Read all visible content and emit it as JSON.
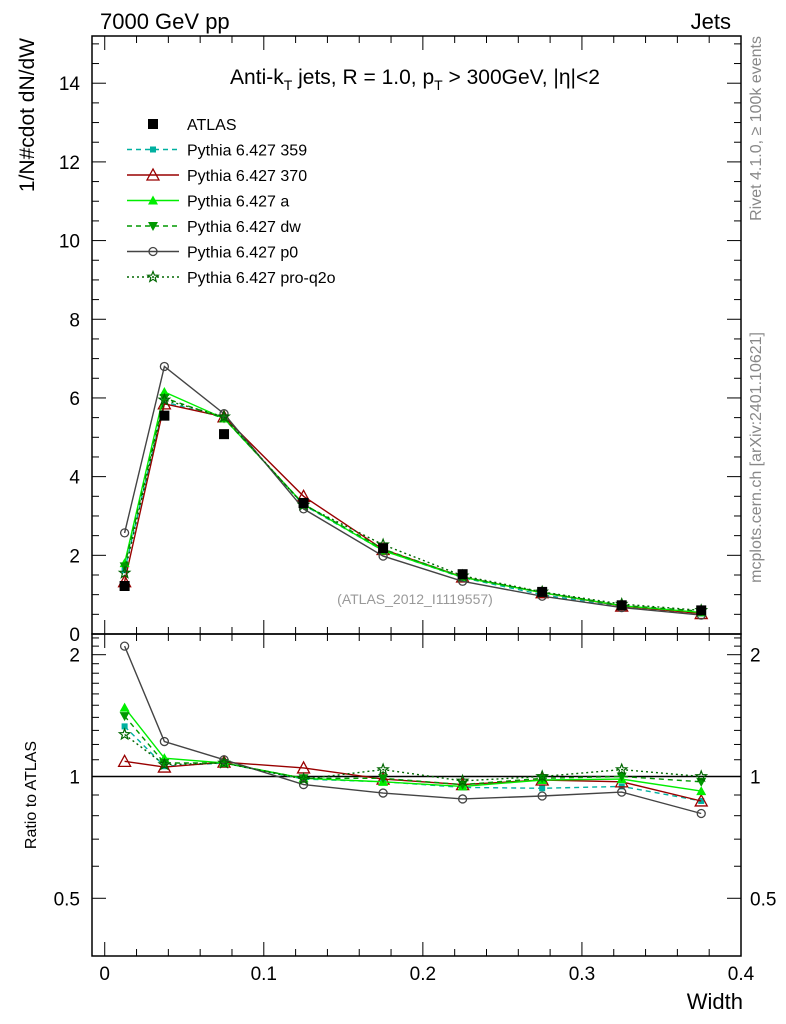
{
  "header": {
    "left": "7000 GeV pp",
    "right": "Jets"
  },
  "title": {
    "main": "Anti-k",
    "sub_T": "T",
    "rest1": " jets, R = 1.0, p",
    "rest2": " > 300GeV, |η|<2"
  },
  "side_labels": {
    "rivet": "Rivet 4.1.0, ≥ 100k events",
    "mcplots": "mcplots.cern.ch [arXiv:2401.10621]"
  },
  "watermark": "(ATLAS_2012_I1119557)",
  "colors": {
    "atlas": "#000000",
    "p359": "#00b0a0",
    "p370": "#990000",
    "pa": "#00ee00",
    "pdw": "#009900",
    "pp0": "#444444",
    "pq2o": "#006600"
  },
  "chart_data": {
    "type": "line",
    "title": "Anti-kT jets, R = 1.0, pT > 300GeV, |η|<2",
    "xlabel": "Width",
    "ylabel": "1/N#cdot dN/dW",
    "ratio_ylabel": "Ratio to ATLAS",
    "xlim": [
      -0.008,
      0.4
    ],
    "ylim": [
      0,
      15.2
    ],
    "ratio_ylim": [
      0.36,
      2.25
    ],
    "x_ticks": [
      "0",
      "0.1",
      "0.2",
      "0.3",
      "0.4"
    ],
    "y_ticks": [
      "0",
      "2",
      "4",
      "6",
      "8",
      "10",
      "12",
      "14"
    ],
    "ratio_ticks": [
      "0.5",
      "1",
      "2"
    ],
    "x": [
      0.0125,
      0.0375,
      0.075,
      0.125,
      0.175,
      0.225,
      0.275,
      0.325,
      0.375
    ],
    "reference": {
      "name": "ATLAS",
      "values": [
        1.22,
        5.55,
        5.08,
        3.33,
        2.18,
        1.52,
        1.07,
        0.73,
        0.6
      ]
    },
    "series": [
      {
        "name": "Pythia 6.427 359",
        "values": [
          1.62,
          5.9,
          5.5,
          3.28,
          2.12,
          1.43,
          1.0,
          0.69,
          0.52
        ]
      },
      {
        "name": "Pythia 6.427 370",
        "values": [
          1.33,
          5.85,
          5.52,
          3.5,
          2.15,
          1.45,
          1.05,
          0.71,
          0.52
        ]
      },
      {
        "name": "Pythia 6.427 a",
        "values": [
          1.8,
          6.15,
          5.48,
          3.3,
          2.12,
          1.44,
          1.05,
          0.72,
          0.55
        ]
      },
      {
        "name": "Pythia 6.427 dw",
        "values": [
          1.72,
          6.0,
          5.48,
          3.3,
          2.16,
          1.45,
          1.06,
          0.73,
          0.58
        ]
      },
      {
        "name": "Pythia 6.427 p0",
        "values": [
          2.57,
          6.8,
          5.6,
          3.18,
          1.98,
          1.34,
          0.96,
          0.67,
          0.48
        ]
      },
      {
        "name": "Pythia 6.427 pro-q2o",
        "values": [
          1.55,
          5.95,
          5.52,
          3.28,
          2.27,
          1.48,
          1.07,
          0.76,
          0.6
        ]
      }
    ],
    "ratio_values": [
      [
        1.33,
        1.06,
        1.08,
        0.985,
        0.97,
        0.94,
        0.935,
        0.945,
        0.87
      ],
      [
        1.09,
        1.055,
        1.085,
        1.05,
        0.985,
        0.955,
        0.98,
        0.97,
        0.87
      ],
      [
        1.48,
        1.11,
        1.08,
        0.99,
        0.97,
        0.945,
        0.98,
        0.985,
        0.92
      ],
      [
        1.41,
        1.08,
        1.08,
        0.99,
        0.99,
        0.955,
        0.99,
        1.0,
        0.97
      ],
      [
        2.1,
        1.22,
        1.1,
        0.955,
        0.91,
        0.88,
        0.895,
        0.915,
        0.81
      ],
      [
        1.27,
        1.07,
        1.08,
        0.985,
        1.04,
        0.975,
        1.0,
        1.04,
        1.0
      ]
    ]
  }
}
